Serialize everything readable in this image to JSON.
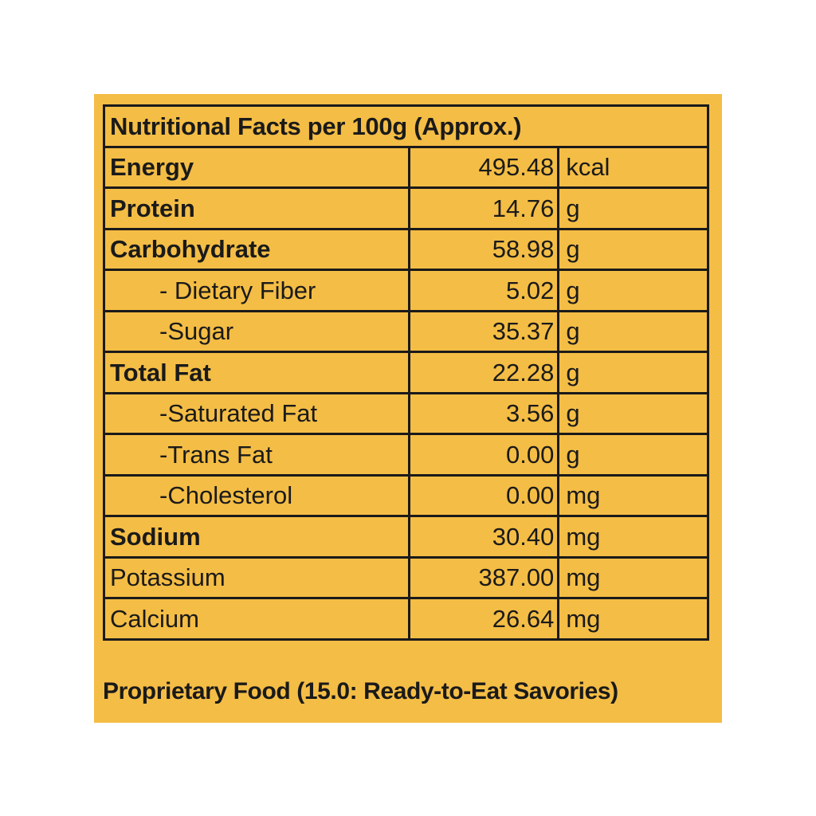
{
  "colors": {
    "background": "#f4bd45",
    "border": "#1a1a1a",
    "text": "#1a1a1a"
  },
  "title": "Nutritional Facts per 100g (Approx.)",
  "rows": [
    {
      "name": "Energy",
      "value": "495.48",
      "unit": "kcal",
      "bold": true,
      "indent": false
    },
    {
      "name": "Protein",
      "value": "14.76",
      "unit": "g",
      "bold": true,
      "indent": false
    },
    {
      "name": "Carbohydrate",
      "value": "58.98",
      "unit": "g",
      "bold": true,
      "indent": false
    },
    {
      "name": "- Dietary Fiber",
      "value": "5.02",
      "unit": "g",
      "bold": false,
      "indent": true
    },
    {
      "name": "-Sugar",
      "value": "35.37",
      "unit": "g",
      "bold": false,
      "indent": true
    },
    {
      "name": "Total Fat",
      "value": "22.28",
      "unit": "g",
      "bold": true,
      "indent": false
    },
    {
      "name": "-Saturated Fat",
      "value": "3.56",
      "unit": "g",
      "bold": false,
      "indent": true
    },
    {
      "name": "-Trans Fat",
      "value": "0.00",
      "unit": "g",
      "bold": false,
      "indent": true
    },
    {
      "name": "-Cholesterol",
      "value": "0.00",
      "unit": "mg",
      "bold": false,
      "indent": true
    },
    {
      "name": "Sodium",
      "value": "30.40",
      "unit": "mg",
      "bold": true,
      "indent": false
    },
    {
      "name": "Potassium",
      "value": "387.00",
      "unit": "mg",
      "bold": false,
      "indent": false
    },
    {
      "name": "Calcium",
      "value": "26.64",
      "unit": "mg",
      "bold": false,
      "indent": false
    }
  ],
  "footer": "Proprietary Food (15.0: Ready-to-Eat Savories)"
}
